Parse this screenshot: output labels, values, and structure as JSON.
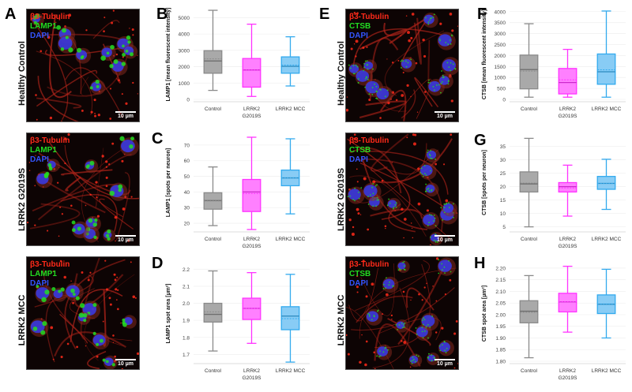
{
  "panels": {
    "A": {
      "letter": "A"
    },
    "B": {
      "letter": "B"
    },
    "C": {
      "letter": "C"
    },
    "D": {
      "letter": "D"
    },
    "E": {
      "letter": "E"
    },
    "F": {
      "letter": "F"
    },
    "G": {
      "letter": "G"
    },
    "H": {
      "letter": "H"
    }
  },
  "row_labels": [
    "Healthy Control",
    "LRRK2 G2019S",
    "LRRK2 MCC"
  ],
  "micrographs": {
    "lamp1": [
      {
        "row": "Healthy Control",
        "labels": [
          "β3-Tubulin",
          "LAMP1",
          "DAPI"
        ],
        "scale": "10 µm"
      },
      {
        "row": "LRRK2 G2019S",
        "labels": [
          "β3-Tubulin",
          "LAMP1",
          "DAPI"
        ],
        "scale": "10 µm"
      },
      {
        "row": "LRRK2 MCC",
        "labels": [
          "β3-Tubulin",
          "LAMP1",
          "DAPI"
        ],
        "scale": "10 µm"
      }
    ],
    "ctsb": [
      {
        "row": "Healthy Control",
        "labels": [
          "β3-Tubulin",
          "CTSB",
          "DAPI"
        ],
        "scale": "10 µm"
      },
      {
        "row": "LRRK2 G2019S",
        "labels": [
          "β3-Tubulin",
          "CTSB",
          "DAPI"
        ],
        "scale": "10 µm"
      },
      {
        "row": "LRRK2 MCC",
        "labels": [
          "β3-Tubulin",
          "CTSB",
          "DAPI"
        ],
        "scale": "10 µm"
      }
    ]
  },
  "colors": {
    "tubulin": "#ff2a1a",
    "marker": "#22dd22",
    "dapi": "#3355ff",
    "control": "#8a8a8a",
    "control_fill": "#a9a9a9",
    "g2019s": "#ff33ff",
    "g2019s_fill": "#ff80ff",
    "mcc": "#33aaee",
    "mcc_fill": "#88ccf5"
  },
  "chart_data": [
    {
      "panel": "B",
      "type": "box",
      "title": "",
      "ylabel": "LAMP1 [mean fluorescent intensity]",
      "categories": [
        "Control",
        "LRRK2\nG2019S",
        "LRRK2 MCC"
      ],
      "ylim": [
        0,
        5500
      ],
      "yticks": [
        0,
        1000,
        2000,
        3000,
        4000,
        5000
      ],
      "series": [
        {
          "name": "Control",
          "min": 550,
          "q1": 1600,
          "median": 2350,
          "mean": 2480,
          "q3": 2980,
          "max": 5450
        },
        {
          "name": "LRRK2 G2019S",
          "min": 180,
          "q1": 750,
          "median": 1800,
          "mean": 1800,
          "q3": 2500,
          "max": 4600
        },
        {
          "name": "LRRK2 MCC",
          "min": 820,
          "q1": 1600,
          "median": 2020,
          "mean": 2100,
          "q3": 2600,
          "max": 3830
        }
      ]
    },
    {
      "panel": "C",
      "type": "box",
      "ylabel": "LAMP1 [spots per neuron]",
      "categories": [
        "Control",
        "LRRK2\nG2019S",
        "LRRK2 MCC"
      ],
      "ylim": [
        16,
        76
      ],
      "yticks": [
        20,
        30,
        40,
        50,
        60,
        70
      ],
      "series": [
        {
          "name": "Control",
          "min": 18.5,
          "q1": 29,
          "median": 34.5,
          "mean": 34.3,
          "q3": 39.5,
          "max": 56
        },
        {
          "name": "LRRK2 G2019S",
          "min": 16,
          "q1": 27.5,
          "median": 40,
          "mean": 39,
          "q3": 48,
          "max": 75
        },
        {
          "name": "LRRK2 MCC",
          "min": 26,
          "q1": 44,
          "median": 49,
          "mean": 49,
          "q3": 54,
          "max": 74
        }
      ]
    },
    {
      "panel": "D",
      "type": "box",
      "ylabel": "LAMP1 spot area [µm²]",
      "categories": [
        "Control",
        "LRRK2\nG2019S",
        "LRRK2 MCC"
      ],
      "ylim": [
        1.66,
        2.22
      ],
      "yticks": [
        1.7,
        1.8,
        1.9,
        2.0,
        2.1,
        2.2
      ],
      "series": [
        {
          "name": "Control",
          "min": 1.72,
          "q1": 1.89,
          "median": 1.935,
          "mean": 1.95,
          "q3": 2.0,
          "max": 2.19
        },
        {
          "name": "LRRK2 G2019S",
          "min": 1.765,
          "q1": 1.905,
          "median": 1.97,
          "mean": 1.97,
          "q3": 2.03,
          "max": 2.18
        },
        {
          "name": "LRRK2 MCC",
          "min": 1.655,
          "q1": 1.845,
          "median": 1.925,
          "mean": 1.91,
          "q3": 1.98,
          "max": 2.17
        }
      ]
    },
    {
      "panel": "F",
      "type": "box",
      "ylabel": "CTSB [mean fluorescent intensity]",
      "categories": [
        "Control",
        "LRRK2\nG2019S",
        "LRRK2 MCC"
      ],
      "ylim": [
        0,
        4100
      ],
      "yticks": [
        0,
        500,
        1000,
        1500,
        2000,
        2500,
        3000,
        3500,
        4000
      ],
      "series": [
        {
          "name": "Control",
          "min": 100,
          "q1": 480,
          "median": 1360,
          "mean": 1290,
          "q3": 2020,
          "max": 3450
        },
        {
          "name": "LRRK2 G2019S",
          "min": 100,
          "q1": 250,
          "median": 770,
          "mean": 890,
          "q3": 1410,
          "max": 2280
        },
        {
          "name": "LRRK2 MCC",
          "min": 100,
          "q1": 690,
          "median": 1260,
          "mean": 1350,
          "q3": 2070,
          "max": 4030
        }
      ]
    },
    {
      "panel": "G",
      "type": "box",
      "ylabel": "CTSB [spots per neuron]",
      "categories": [
        "Control",
        "LRRK2\nG2019S",
        "LRRK2 MCC"
      ],
      "ylim": [
        4,
        39
      ],
      "yticks": [
        5,
        10,
        15,
        20,
        25,
        30,
        35
      ],
      "series": [
        {
          "name": "Control",
          "min": 5,
          "q1": 18,
          "median": 21,
          "mean": 21.3,
          "q3": 25.5,
          "max": 38
        },
        {
          "name": "LRRK2 G2019S",
          "min": 9,
          "q1": 18,
          "median": 20,
          "mean": 19.5,
          "q3": 21.5,
          "max": 28
        },
        {
          "name": "LRRK2 MCC",
          "min": 11.5,
          "q1": 19,
          "median": 21.2,
          "mean": 21.2,
          "q3": 23.8,
          "max": 30.2
        }
      ]
    },
    {
      "panel": "H",
      "type": "box",
      "ylabel": "CTSB spot area [µm²]",
      "categories": [
        "Control",
        "LRRK2\nG2019S",
        "LRRK2 MCC"
      ],
      "ylim": [
        1.8,
        2.21
      ],
      "yticks": [
        1.8,
        1.85,
        1.9,
        1.95,
        2.0,
        2.05,
        2.1,
        2.15,
        2.2
      ],
      "series": [
        {
          "name": "Control",
          "min": 1.815,
          "q1": 1.965,
          "median": 2.015,
          "mean": 2.01,
          "q3": 2.06,
          "max": 2.168
        },
        {
          "name": "LRRK2 G2019S",
          "min": 1.925,
          "q1": 2.012,
          "median": 2.055,
          "mean": 2.056,
          "q3": 2.092,
          "max": 2.208
        },
        {
          "name": "LRRK2 MCC",
          "min": 1.9,
          "q1": 2.005,
          "median": 2.045,
          "mean": 2.046,
          "q3": 2.085,
          "max": 2.195
        }
      ]
    }
  ]
}
